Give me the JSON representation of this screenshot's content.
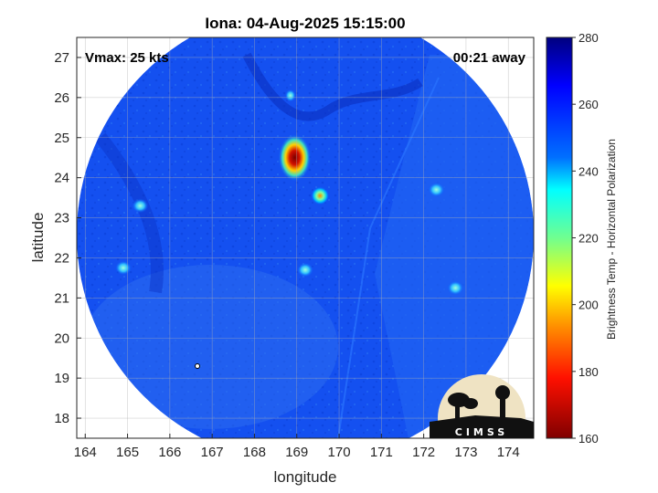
{
  "title": "Iona: 04-Aug-2025 15:15:00",
  "annotations": {
    "vmax": "Vmax: 25 kts",
    "time_away": "00:21 away"
  },
  "colorbar": {
    "label": "Brightness Temp - Horizontal Polarization",
    "ticks": [
      "280",
      "260",
      "240",
      "220",
      "200",
      "180",
      "160"
    ]
  },
  "logo": {
    "text": "CIMSS"
  },
  "chart_data": {
    "type": "heatmap",
    "title": "Iona: 04-Aug-2025 15:15:00",
    "xlabel": "longitude",
    "ylabel": "latitude",
    "xlim": [
      163.8,
      174.6
    ],
    "ylim": [
      17.5,
      27.5
    ],
    "xticks": [
      "164",
      "165",
      "166",
      "167",
      "168",
      "169",
      "170",
      "171",
      "172",
      "173",
      "174"
    ],
    "yticks": [
      "18",
      "19",
      "20",
      "21",
      "22",
      "23",
      "24",
      "25",
      "26",
      "27"
    ],
    "grid": true,
    "swath_center": [
      169.1,
      22.2
    ],
    "swath_radius_deg_lon": 5.65,
    "colormap": "jet",
    "clim": [
      160,
      280
    ],
    "background_value": 255,
    "features": [
      {
        "lon": 168.95,
        "lat": 24.5,
        "value": 175
      },
      {
        "lon": 169.55,
        "lat": 23.55,
        "value": 200
      },
      {
        "lon": 168.85,
        "lat": 26.05,
        "value": 225
      },
      {
        "lon": 172.75,
        "lat": 21.25,
        "value": 232
      },
      {
        "lon": 172.3,
        "lat": 23.7,
        "value": 240
      },
      {
        "lon": 164.9,
        "lat": 21.75,
        "value": 235
      },
      {
        "lon": 169.2,
        "lat": 21.7,
        "value": 238
      },
      {
        "lon": 165.3,
        "lat": 23.3,
        "value": 242
      }
    ]
  }
}
